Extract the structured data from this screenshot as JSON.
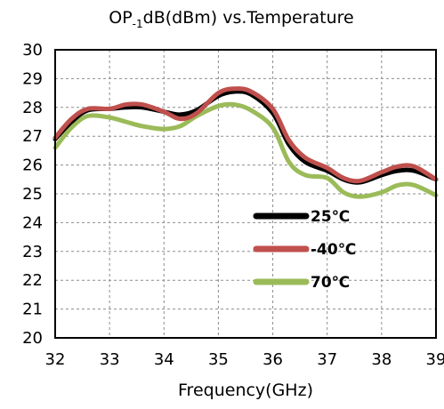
{
  "chart_data": {
    "type": "line",
    "title_parts": [
      "OP",
      "-1",
      "dB(dBm) vs.Temperature"
    ],
    "title": "OP-1dB(dBm) vs.Temperature",
    "xlabel": "Frequency(GHz)",
    "ylabel": "",
    "xlim": [
      32,
      39
    ],
    "ylim": [
      20,
      30
    ],
    "xticks": [
      32,
      33,
      34,
      35,
      36,
      37,
      38,
      39
    ],
    "yticks": [
      20,
      21,
      22,
      23,
      24,
      25,
      26,
      27,
      28,
      29,
      30
    ],
    "grid": true,
    "legend_position": "bottom-center",
    "series": [
      {
        "name": "25℃",
        "color": "#000000",
        "x": [
          32.0,
          32.3,
          32.6,
          33.0,
          33.3,
          33.6,
          34.0,
          34.3,
          34.6,
          35.0,
          35.3,
          35.6,
          36.0,
          36.3,
          36.6,
          37.0,
          37.3,
          37.6,
          38.0,
          38.3,
          38.6,
          39.0
        ],
        "y": [
          26.9,
          27.5,
          27.9,
          27.95,
          28.0,
          28.0,
          27.85,
          27.75,
          27.9,
          28.4,
          28.55,
          28.45,
          27.8,
          26.7,
          26.1,
          25.8,
          25.5,
          25.4,
          25.65,
          25.8,
          25.8,
          25.5
        ]
      },
      {
        "name": "-40℃",
        "color": "#c0504d",
        "x": [
          32.0,
          32.3,
          32.6,
          33.0,
          33.3,
          33.6,
          34.0,
          34.3,
          34.6,
          35.0,
          35.3,
          35.6,
          36.0,
          36.3,
          36.6,
          37.0,
          37.3,
          37.6,
          38.0,
          38.3,
          38.6,
          39.0
        ],
        "y": [
          26.95,
          27.6,
          27.95,
          27.95,
          28.1,
          28.1,
          27.85,
          27.6,
          27.8,
          28.5,
          28.65,
          28.55,
          27.95,
          26.85,
          26.25,
          25.9,
          25.55,
          25.45,
          25.75,
          25.95,
          25.95,
          25.5
        ]
      },
      {
        "name": "70℃",
        "color": "#9bbb59",
        "x": [
          32.0,
          32.3,
          32.6,
          33.0,
          33.3,
          33.6,
          34.0,
          34.3,
          34.6,
          35.0,
          35.3,
          35.6,
          36.0,
          36.3,
          36.6,
          37.0,
          37.3,
          37.6,
          38.0,
          38.3,
          38.6,
          39.0
        ],
        "y": [
          26.6,
          27.3,
          27.7,
          27.65,
          27.5,
          27.35,
          27.25,
          27.35,
          27.7,
          28.05,
          28.1,
          27.9,
          27.3,
          26.1,
          25.65,
          25.55,
          25.05,
          24.9,
          25.05,
          25.3,
          25.3,
          24.95
        ]
      }
    ]
  }
}
